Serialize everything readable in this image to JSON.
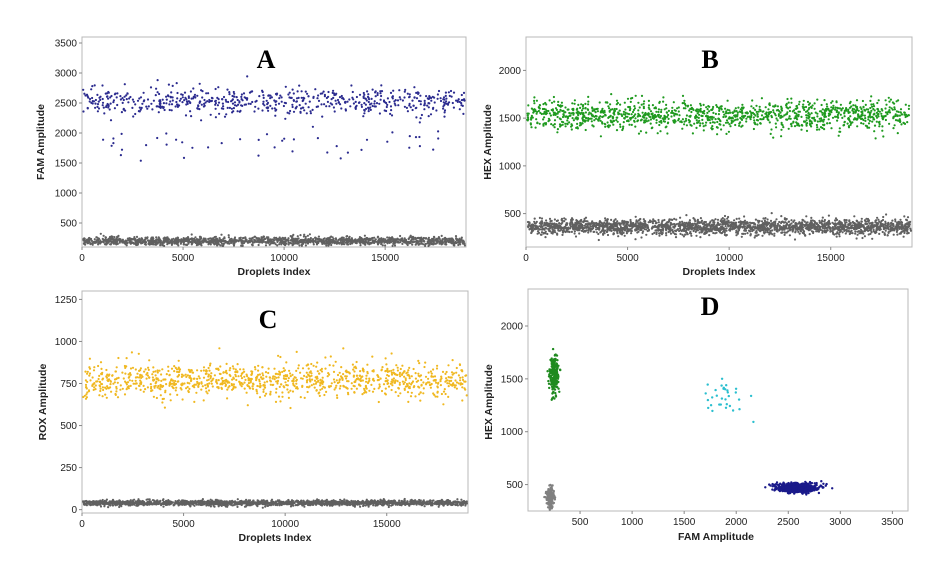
{
  "chart_data": [
    {
      "panel": "A",
      "type": "scatter",
      "xlabel": "Droplets Index",
      "ylabel": "FAM Amplitude",
      "xlim": [
        0,
        19000
      ],
      "ylim": [
        100,
        3600
      ],
      "xticks": [
        0,
        5000,
        10000,
        15000
      ],
      "yticks": [
        500,
        1000,
        1500,
        2000,
        2500,
        3000,
        3500
      ],
      "clusters": [
        {
          "name": "negative",
          "color": "#606060",
          "count": 1600,
          "y_center": 200,
          "y_spread": 35,
          "x_range": [
            0,
            19000
          ]
        },
        {
          "name": "positive",
          "color": "#2b2b8f",
          "count": 650,
          "y_center": 2530,
          "y_spread": 110,
          "x_range": [
            0,
            19000
          ]
        },
        {
          "name": "rain",
          "color": "#2b2b8f",
          "count": 45,
          "y_center": 1800,
          "y_spread": 160,
          "x_range": [
            0,
            19000
          ]
        }
      ]
    },
    {
      "panel": "B",
      "type": "scatter",
      "xlabel": "Droplets Index",
      "ylabel": "HEX Amplitude",
      "xlim": [
        0,
        19000
      ],
      "ylim": [
        150,
        2350
      ],
      "xticks": [
        0,
        5000,
        10000,
        15000
      ],
      "yticks": [
        500,
        1000,
        1500,
        2000
      ],
      "clusters": [
        {
          "name": "negative",
          "color": "#606060",
          "count": 2200,
          "y_center": 360,
          "y_spread": 40,
          "x_range": [
            0,
            19000
          ]
        },
        {
          "name": "positive",
          "color": "#1f9a1f",
          "count": 1300,
          "y_center": 1530,
          "y_spread": 75,
          "x_range": [
            0,
            19000
          ]
        }
      ]
    },
    {
      "panel": "C",
      "type": "scatter",
      "xlabel": "Droplets Index",
      "ylabel": "ROX Amplitude",
      "xlim": [
        0,
        19000
      ],
      "ylim": [
        -20,
        1300
      ],
      "xticks": [
        0,
        5000,
        10000,
        15000
      ],
      "yticks": [
        0,
        250,
        500,
        750,
        1000,
        1250
      ],
      "clusters": [
        {
          "name": "negative",
          "color": "#606060",
          "count": 1800,
          "y_center": 40,
          "y_spread": 8,
          "x_range": [
            0,
            19000
          ]
        },
        {
          "name": "positive",
          "color": "#f0b820",
          "count": 1100,
          "y_center": 770,
          "y_spread": 50,
          "x_range": [
            0,
            19000
          ]
        }
      ]
    },
    {
      "panel": "D",
      "type": "scatter",
      "xlabel": "FAM Amplitude",
      "ylabel": "HEX Amplitude",
      "xlim": [
        0,
        3650
      ],
      "ylim": [
        250,
        2350
      ],
      "xticks": [
        500,
        1000,
        1500,
        2000,
        2500,
        3000,
        3500
      ],
      "yticks": [
        500,
        1000,
        1500,
        2000
      ],
      "clusters2d": [
        {
          "name": "double-negative",
          "color": "#808080",
          "count": 160,
          "cx": 210,
          "cy": 380,
          "sx": 20,
          "sy": 45
        },
        {
          "name": "HEX-positive",
          "color": "#1f8a1f",
          "count": 220,
          "cx": 255,
          "cy": 1530,
          "sx": 22,
          "sy": 90
        },
        {
          "name": "FAM-HEX rain",
          "color": "#2bbfcf",
          "count": 32,
          "cx": 1870,
          "cy": 1330,
          "sx": 130,
          "sy": 90
        },
        {
          "name": "FAM-positive",
          "color": "#1a1a8a",
          "count": 600,
          "cx": 2580,
          "cy": 470,
          "sx": 100,
          "sy": 22
        }
      ]
    }
  ]
}
